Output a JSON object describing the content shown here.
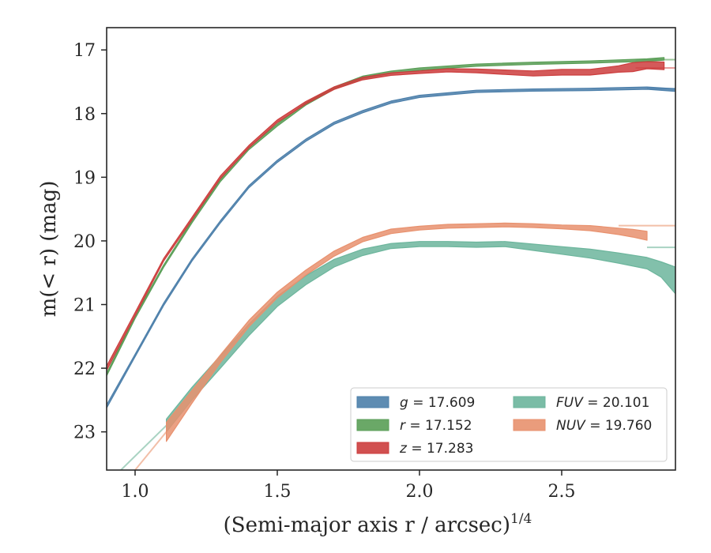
{
  "chart_data": {
    "type": "line",
    "xlabel": "(Semi-major axis r / arcsec)",
    "xlabel_sup": "1/4",
    "ylabel": "m(< r) (mag)",
    "xlim": [
      0.9,
      2.9
    ],
    "ylim": [
      23.6,
      16.65
    ],
    "y_inverted": true,
    "grid": false,
    "legend_position": "lower-right",
    "x_ticks": [
      {
        "value": 1.0,
        "label": "1.0"
      },
      {
        "value": 1.5,
        "label": "1.5"
      },
      {
        "value": 2.0,
        "label": "2.0"
      },
      {
        "value": 2.5,
        "label": "2.5"
      }
    ],
    "y_ticks": [
      {
        "value": 17,
        "label": "17"
      },
      {
        "value": 18,
        "label": "18"
      },
      {
        "value": 19,
        "label": "19"
      },
      {
        "value": 20,
        "label": "20"
      },
      {
        "value": 21,
        "label": "21"
      },
      {
        "value": 22,
        "label": "22"
      },
      {
        "value": 23,
        "label": "23"
      }
    ],
    "series": [
      {
        "name": "g = 17.609",
        "band": "g",
        "total": "17.609",
        "color": "#4c7faa",
        "fit_color": "#93b3d0",
        "fit_value": 17.609,
        "x": [
          0.9,
          1.0,
          1.1,
          1.2,
          1.3,
          1.4,
          1.5,
          1.6,
          1.7,
          1.8,
          1.9,
          2.0,
          2.2,
          2.4,
          2.6,
          2.8,
          2.9
        ],
        "y": [
          22.6,
          21.8,
          21.0,
          20.3,
          19.7,
          19.15,
          18.75,
          18.42,
          18.15,
          17.97,
          17.82,
          17.73,
          17.65,
          17.63,
          17.62,
          17.6,
          17.63
        ],
        "width": [
          0.05,
          0.04,
          0.04,
          0.03,
          0.03,
          0.03,
          0.03,
          0.03,
          0.03,
          0.03,
          0.03,
          0.03,
          0.03,
          0.03,
          0.03,
          0.03,
          0.04
        ]
      },
      {
        "name": "r = 17.152",
        "band": "r",
        "total": "17.152",
        "color": "#5a9e57",
        "fit_color": "#9bc79a",
        "fit_value": 17.152,
        "x": [
          0.9,
          1.0,
          1.1,
          1.2,
          1.3,
          1.4,
          1.5,
          1.6,
          1.7,
          1.8,
          1.9,
          2.0,
          2.2,
          2.4,
          2.6,
          2.8,
          2.86
        ],
        "y": [
          22.1,
          21.2,
          20.4,
          19.7,
          19.05,
          18.55,
          18.18,
          17.85,
          17.6,
          17.43,
          17.35,
          17.3,
          17.24,
          17.21,
          17.19,
          17.16,
          17.14
        ],
        "width": [
          0.04,
          0.04,
          0.03,
          0.03,
          0.03,
          0.03,
          0.03,
          0.03,
          0.03,
          0.03,
          0.03,
          0.03,
          0.03,
          0.03,
          0.03,
          0.04,
          0.04
        ]
      },
      {
        "name": "z = 17.283",
        "band": "z",
        "total": "17.283",
        "color": "#cc3d3d",
        "fit_color": "#e89a9a",
        "fit_value": 17.283,
        "x": [
          0.9,
          1.0,
          1.1,
          1.2,
          1.3,
          1.4,
          1.5,
          1.6,
          1.7,
          1.8,
          1.9,
          2.0,
          2.1,
          2.2,
          2.3,
          2.4,
          2.5,
          2.6,
          2.7,
          2.75,
          2.8,
          2.86
        ],
        "y": [
          22.0,
          21.15,
          20.3,
          19.65,
          19.0,
          18.52,
          18.12,
          17.83,
          17.6,
          17.45,
          17.38,
          17.35,
          17.32,
          17.33,
          17.35,
          17.37,
          17.35,
          17.35,
          17.3,
          17.27,
          17.24,
          17.25
        ],
        "width": [
          0.07,
          0.05,
          0.04,
          0.04,
          0.04,
          0.04,
          0.04,
          0.04,
          0.04,
          0.04,
          0.04,
          0.04,
          0.05,
          0.06,
          0.07,
          0.08,
          0.09,
          0.09,
          0.1,
          0.14,
          0.11,
          0.12
        ]
      },
      {
        "name": "FUV = 20.101",
        "band": "FUV",
        "total": "20.101",
        "color": "#6cb59c",
        "fit_color": "#a9d3c2",
        "fit_value": 20.101,
        "x": [
          1.11,
          1.2,
          1.3,
          1.4,
          1.5,
          1.6,
          1.7,
          1.8,
          1.9,
          2.0,
          2.1,
          2.2,
          2.3,
          2.4,
          2.5,
          2.6,
          2.7,
          2.8,
          2.85,
          2.9
        ],
        "y": [
          22.9,
          22.4,
          21.9,
          21.4,
          20.95,
          20.62,
          20.35,
          20.18,
          20.08,
          20.05,
          20.05,
          20.06,
          20.05,
          20.1,
          20.15,
          20.2,
          20.27,
          20.35,
          20.45,
          20.62
        ],
        "width": [
          0.2,
          0.2,
          0.2,
          0.18,
          0.16,
          0.14,
          0.12,
          0.1,
          0.08,
          0.08,
          0.08,
          0.08,
          0.08,
          0.1,
          0.12,
          0.14,
          0.16,
          0.18,
          0.24,
          0.42
        ]
      },
      {
        "name": "NUV = 19.760",
        "band": "NUV",
        "total": "19.760",
        "color": "#e8916e",
        "fit_color": "#f2bfa8",
        "fit_value": 19.76,
        "x": [
          1.11,
          1.2,
          1.3,
          1.4,
          1.5,
          1.6,
          1.7,
          1.8,
          1.9,
          2.0,
          2.1,
          2.2,
          2.3,
          2.4,
          2.5,
          2.6,
          2.7,
          2.75,
          2.8
        ],
        "y": [
          23.0,
          22.45,
          21.85,
          21.3,
          20.85,
          20.5,
          20.2,
          19.98,
          19.85,
          19.8,
          19.77,
          19.76,
          19.75,
          19.76,
          19.78,
          19.8,
          19.85,
          19.88,
          19.92
        ],
        "width": [
          0.3,
          0.2,
          0.12,
          0.1,
          0.09,
          0.08,
          0.08,
          0.07,
          0.07,
          0.06,
          0.06,
          0.06,
          0.06,
          0.06,
          0.06,
          0.08,
          0.1,
          0.12,
          0.14
        ]
      }
    ],
    "fit_extension_lines": [
      {
        "band": "FUV",
        "x": [
          0.95,
          1.11
        ],
        "y": [
          23.6,
          22.9
        ]
      },
      {
        "band": "NUV",
        "x": [
          1.0,
          1.11
        ],
        "y": [
          23.6,
          23.0
        ]
      }
    ]
  }
}
